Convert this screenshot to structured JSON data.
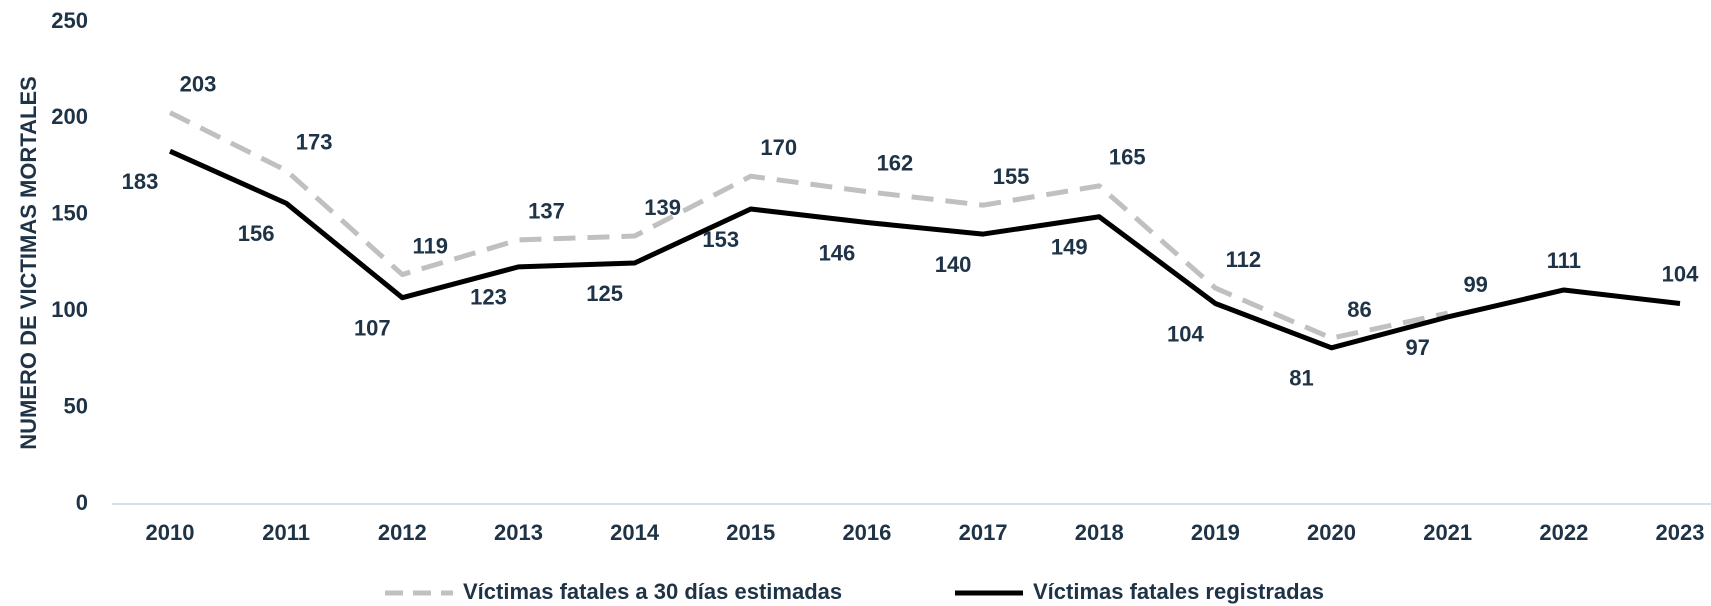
{
  "chart_data": {
    "type": "line",
    "y_label": "NUMERO DE VICTIMAS MORTALES",
    "categories": [
      "2010",
      "2011",
      "2012",
      "2013",
      "2014",
      "2015",
      "2016",
      "2017",
      "2018",
      "2019",
      "2020",
      "2021",
      "2022",
      "2023"
    ],
    "series": [
      {
        "name": "Víctimas fatales a 30 días estimadas",
        "color": "#c0c0c0",
        "dashed": true,
        "values": [
          203,
          173,
          119,
          137,
          139,
          170,
          162,
          155,
          165,
          112,
          86,
          99,
          null,
          null
        ]
      },
      {
        "name": "Víctimas fatales registradas",
        "color": "#000000",
        "dashed": false,
        "values": [
          183,
          156,
          107,
          123,
          125,
          153,
          146,
          140,
          149,
          104,
          81,
          97,
          111,
          104
        ]
      }
    ],
    "ylim": [
      0,
      250
    ],
    "yticks": [
      0,
      50,
      100,
      150,
      200,
      250
    ],
    "grid": false,
    "legend": "bottom"
  }
}
